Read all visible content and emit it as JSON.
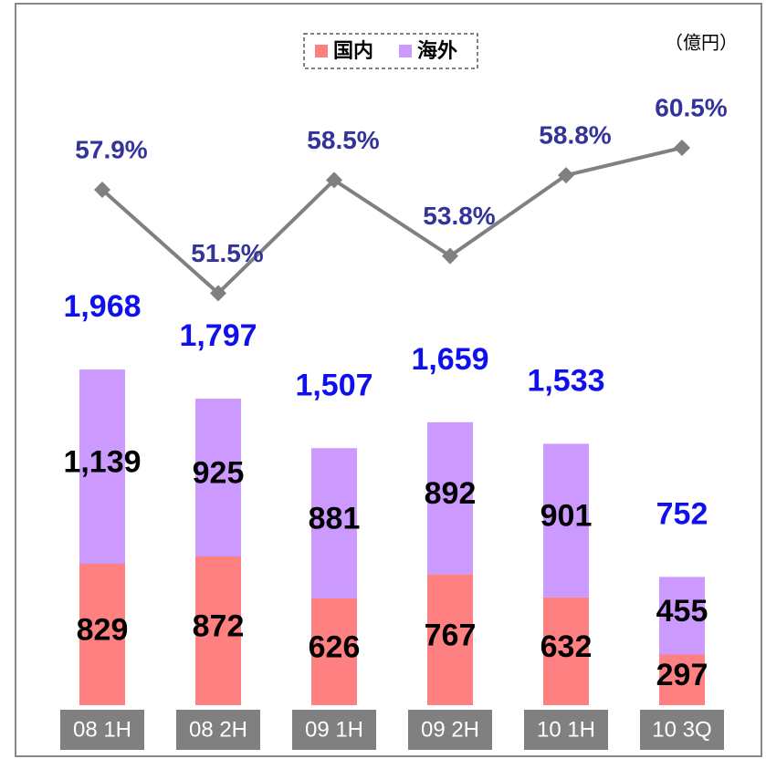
{
  "chart_data": {
    "type": "stacked-bar-line",
    "unit": "（億円）",
    "categories": [
      "08 1H",
      "08 2H",
      "09 1H",
      "09 2H",
      "10 1H",
      "10 3Q"
    ],
    "series": [
      {
        "name": "国内",
        "color": "#ff8080",
        "values": [
          829,
          872,
          626,
          767,
          632,
          297
        ]
      },
      {
        "name": "海外",
        "color": "#cc99ff",
        "values": [
          1139,
          925,
          881,
          892,
          901,
          455
        ],
        "value_labels": [
          "1,139",
          "925",
          "881",
          "892",
          "901",
          "455"
        ]
      }
    ],
    "totals": [
      1968,
      1797,
      1507,
      1659,
      1533,
      752
    ],
    "total_labels": [
      "1,968",
      "1,797",
      "1,507",
      "1,659",
      "1,533",
      "752"
    ],
    "line": {
      "axis": "y2",
      "color": "#808080",
      "values": [
        57.9,
        51.5,
        58.5,
        53.8,
        58.8,
        60.5
      ],
      "value_labels": [
        "57.9%",
        "51.5%",
        "58.5%",
        "53.8%",
        "58.8%",
        "60.5%"
      ]
    },
    "ylim": [
      0,
      3600
    ],
    "y2lim": [
      26,
      64
    ],
    "legend": "top"
  }
}
